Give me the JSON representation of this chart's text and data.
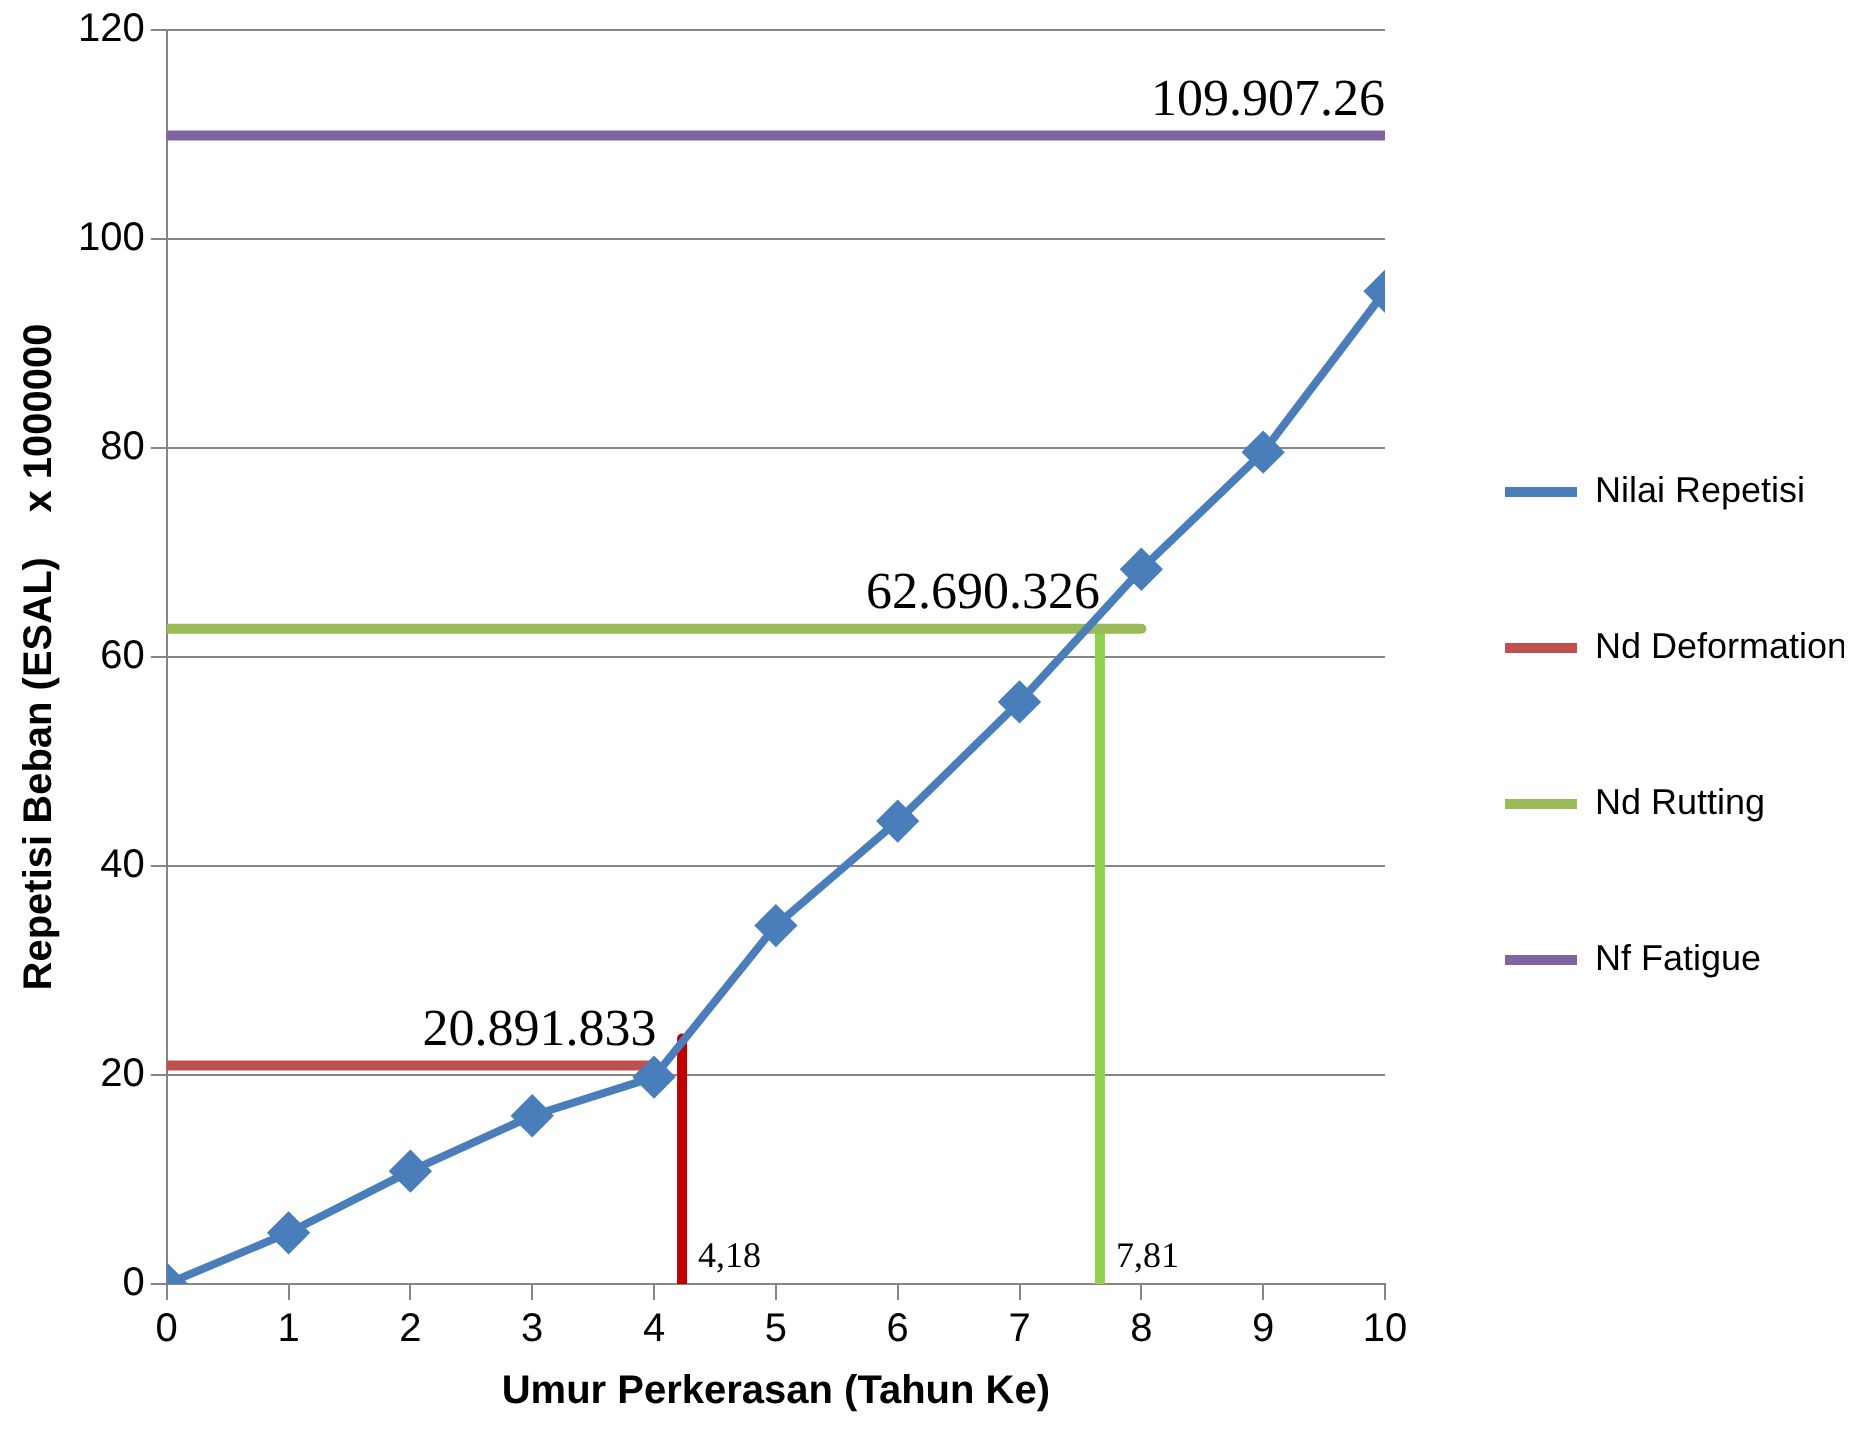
{
  "chart_data": {
    "type": "line",
    "xlabel": "Umur Perkerasan (Tahun Ke)",
    "ylabel": "Repetisi Beban (ESAL)    x 1000000",
    "xlim": [
      0,
      10
    ],
    "xticks": [
      0,
      1,
      2,
      3,
      4,
      5,
      6,
      7,
      8,
      9,
      10
    ],
    "ylim": [
      0,
      120
    ],
    "yticks": [
      0,
      20,
      40,
      60,
      80,
      100,
      120
    ],
    "grid": "y",
    "legend": "right",
    "series": [
      {
        "name": "Nilai Repetisi",
        "color": "#4a7ebb",
        "marker": "diamond",
        "x": [
          0,
          1,
          2,
          3,
          4,
          5,
          6,
          7,
          8,
          9,
          10
        ],
        "values": [
          0,
          4.9,
          10.8,
          16.1,
          19.8,
          34.3,
          44.3,
          55.7,
          68.4,
          79.6,
          95.0
        ]
      },
      {
        "name": "Nd Deformation",
        "color": "#c0504d",
        "marker": "none",
        "x": [
          0,
          4.02
        ],
        "values": [
          20.9,
          20.9
        ]
      },
      {
        "color": "#c00000",
        "marker": "none",
        "x": [
          4.23,
          4.23
        ],
        "values": [
          0,
          23.5
        ]
      },
      {
        "name": "Nd Rutting",
        "color": "#9bbb59",
        "marker": "none",
        "x": [
          0,
          8
        ],
        "values": [
          62.7,
          62.7
        ]
      },
      {
        "color": "#92d050",
        "marker": "none",
        "x": [
          7.66,
          7.66
        ],
        "values": [
          0,
          62.7
        ]
      },
      {
        "name": "Nf Fatigue",
        "color": "#8064a2",
        "marker": "none",
        "x": [
          0,
          10
        ],
        "values": [
          109.9,
          109.9
        ]
      }
    ],
    "annotations": [
      {
        "text": "20.891.833",
        "x": 4.02,
        "y": 20.9
      },
      {
        "text": "62.690.326",
        "x": 7.66,
        "y": 62.7
      },
      {
        "text": "109.907.26",
        "x": 10,
        "y": 109.9
      },
      {
        "text": "4,18",
        "x": 4.23,
        "y": 0
      },
      {
        "text": "7,81",
        "x": 7.66,
        "y": 0
      }
    ]
  }
}
